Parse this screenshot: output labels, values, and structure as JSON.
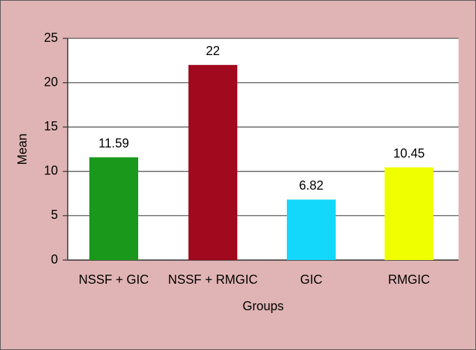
{
  "chart_data": {
    "type": "bar",
    "categories": [
      "NSSF + GIC",
      "NSSF + RMGIC",
      "GIC",
      "RMGIC"
    ],
    "values": [
      11.59,
      22,
      6.82,
      10.45
    ],
    "colors": [
      "#1a981c",
      "#a1091e",
      "#14d8fb",
      "#f0ff00"
    ],
    "ylim": [
      0,
      25
    ],
    "yticks": [
      0,
      5,
      10,
      15,
      20,
      25
    ],
    "grid": true,
    "xlabel": "Groups",
    "ylabel": "Mean"
  }
}
